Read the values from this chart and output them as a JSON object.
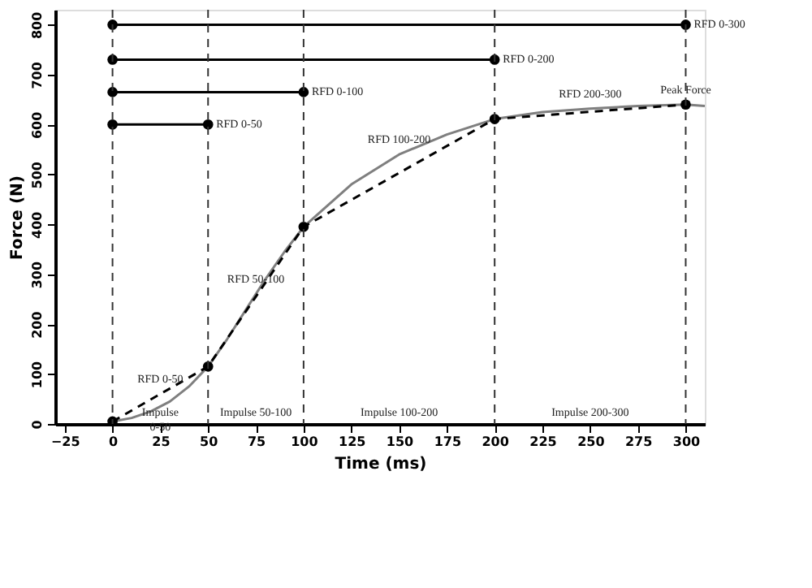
{
  "chart_data": {
    "type": "line",
    "xlabel": "Time (ms)",
    "ylabel": "Force (N)",
    "xlim": [
      -30,
      310
    ],
    "ylim": [
      0,
      830
    ],
    "xticks": [
      -25,
      0,
      25,
      50,
      75,
      100,
      125,
      150,
      175,
      200,
      225,
      250,
      275,
      300
    ],
    "yticks": [
      0,
      100,
      200,
      300,
      400,
      500,
      600,
      700,
      800
    ],
    "grid": false,
    "series": [
      {
        "color": "#7f7f7f",
        "line_style": "solid",
        "marker": "none",
        "x": [
          0,
          10,
          20,
          30,
          40,
          50,
          60,
          70,
          80,
          90,
          100,
          125,
          150,
          175,
          200,
          225,
          250,
          275,
          300,
          310
        ],
        "values": [
          5,
          12,
          25,
          45,
          75,
          115,
          170,
          230,
          290,
          345,
          395,
          480,
          540,
          580,
          611,
          625,
          632,
          637,
          640,
          637
        ]
      },
      {
        "color": "#000000",
        "line_style": "dashed",
        "marker": "circle",
        "x": [
          0,
          50,
          100,
          200,
          300
        ],
        "values": [
          5,
          115,
          395,
          611,
          640
        ]
      },
      {
        "color": "#000000",
        "line_style": "solid",
        "marker": "circle",
        "x": [
          0,
          300
        ],
        "values": [
          800,
          800
        ]
      },
      {
        "color": "#000000",
        "line_style": "solid",
        "marker": "circle",
        "x": [
          0,
          200
        ],
        "values": [
          730,
          730
        ]
      },
      {
        "color": "#000000",
        "line_style": "solid",
        "marker": "circle",
        "x": [
          0,
          100
        ],
        "values": [
          665,
          665
        ]
      },
      {
        "color": "#000000",
        "line_style": "solid",
        "marker": "circle",
        "x": [
          0,
          50
        ],
        "values": [
          600,
          600
        ]
      }
    ],
    "ref_lines": [
      {
        "axis": "x",
        "value": 0,
        "line_style": "dashed"
      },
      {
        "axis": "x",
        "value": 50,
        "line_style": "dashed"
      },
      {
        "axis": "x",
        "value": 100,
        "line_style": "dashed"
      },
      {
        "axis": "x",
        "value": 200,
        "line_style": "dashed"
      },
      {
        "axis": "x",
        "value": 300,
        "line_style": "dashed"
      }
    ],
    "annotations": [
      {
        "text": "RFD 0-300",
        "x": 300,
        "y": 800
      },
      {
        "text": "RFD 0-200",
        "x": 200,
        "y": 730
      },
      {
        "text": "RFD 0-100",
        "x": 100,
        "y": 665
      },
      {
        "text": "RFD 0-50",
        "x": 50,
        "y": 600
      },
      {
        "text": "RFD 0-50",
        "x": 25,
        "y": 60
      },
      {
        "text": "RFD 50-100",
        "x": 75,
        "y": 260
      },
      {
        "text": "RFD 100-200",
        "x": 150,
        "y": 540
      },
      {
        "text": "RFD 200-300",
        "x": 250,
        "y": 632
      },
      {
        "text": "Peak Force",
        "x": 300,
        "y": 640
      },
      "Impulse\n0-50",
      "Impulse 50-100",
      "Impulse 100-200",
      "Impulse 200-300"
    ]
  }
}
